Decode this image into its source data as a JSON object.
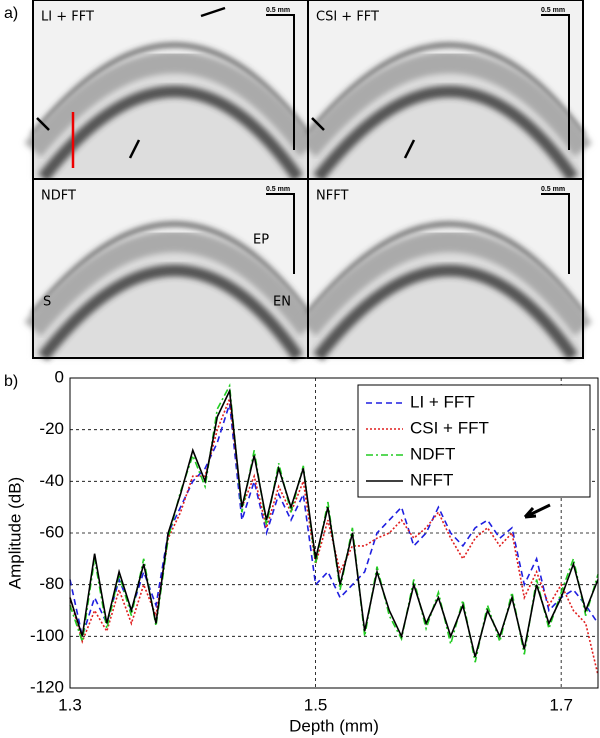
{
  "figure": {
    "panel_label": "a)",
    "images": [
      {
        "title": "LI + FFT",
        "scale": "0.5 mm"
      },
      {
        "title": "CSI + FFT",
        "scale": "0.5 mm"
      },
      {
        "title": "NDFT",
        "scale": "0.5 mm"
      },
      {
        "title": "NFFT",
        "scale": "0.5 mm"
      }
    ],
    "annotations": [
      "EP",
      "S",
      "EN"
    ]
  },
  "chart_data": {
    "type": "line",
    "panel_label": "b)",
    "x_label": "Depth (mm)",
    "y_label": "Amplitude (dB)",
    "xlim": [
      1.3,
      1.73
    ],
    "ylim": [
      -120,
      0
    ],
    "xticks": [
      1.3,
      1.5,
      1.7
    ],
    "yticks": [
      -120,
      -100,
      -80,
      -60,
      -40,
      -20,
      0
    ],
    "grid": true,
    "legend": "top-right",
    "x": [
      1.3,
      1.31,
      1.32,
      1.33,
      1.34,
      1.35,
      1.36,
      1.37,
      1.38,
      1.39,
      1.4,
      1.41,
      1.42,
      1.43,
      1.44,
      1.45,
      1.46,
      1.47,
      1.48,
      1.49,
      1.5,
      1.51,
      1.52,
      1.53,
      1.54,
      1.55,
      1.56,
      1.57,
      1.58,
      1.59,
      1.6,
      1.61,
      1.62,
      1.63,
      1.64,
      1.65,
      1.66,
      1.67,
      1.68,
      1.69,
      1.7,
      1.71,
      1.72,
      1.73
    ],
    "series": [
      {
        "name": "LI + FFT",
        "color": "#1f1fe0",
        "dash": "dashed",
        "values": [
          -78,
          -100,
          -85,
          -95,
          -78,
          -90,
          -75,
          -88,
          -60,
          -50,
          -40,
          -35,
          -25,
          -10,
          -55,
          -40,
          -60,
          -45,
          -55,
          -45,
          -80,
          -75,
          -85,
          -80,
          -75,
          -60,
          -55,
          -50,
          -65,
          -60,
          -50,
          -60,
          -65,
          -58,
          -55,
          -62,
          -58,
          -80,
          -70,
          -90,
          -85,
          -82,
          -88,
          -95
        ]
      },
      {
        "name": "CSI + FFT",
        "color": "#e01f1f",
        "dash": "dotted",
        "values": [
          -85,
          -102,
          -90,
          -98,
          -82,
          -95,
          -80,
          -92,
          -62,
          -52,
          -38,
          -38,
          -20,
          -8,
          -50,
          -38,
          -58,
          -42,
          -52,
          -40,
          -72,
          -55,
          -75,
          -65,
          -65,
          -62,
          -60,
          -55,
          -62,
          -58,
          -52,
          -62,
          -70,
          -62,
          -58,
          -65,
          -60,
          -85,
          -75,
          -88,
          -80,
          -90,
          -95,
          -115
        ]
      },
      {
        "name": "NDFT",
        "color": "#22cc22",
        "dash": "dashdot",
        "values": [
          -88,
          -102,
          -70,
          -97,
          -76,
          -92,
          -70,
          -96,
          -62,
          -44,
          -30,
          -42,
          -12,
          -3,
          -52,
          -28,
          -57,
          -33,
          -52,
          -34,
          -72,
          -48,
          -82,
          -58,
          -100,
          -73,
          -92,
          -101,
          -78,
          -97,
          -83,
          -103,
          -86,
          -110,
          -88,
          -102,
          -83,
          -107,
          -78,
          -97,
          -83,
          -70,
          -92,
          -76
        ]
      },
      {
        "name": "NFFT",
        "color": "#000000",
        "dash": "solid",
        "values": [
          -85,
          -100,
          -68,
          -95,
          -75,
          -90,
          -72,
          -95,
          -60,
          -45,
          -28,
          -40,
          -15,
          -5,
          -50,
          -30,
          -55,
          -35,
          -50,
          -35,
          -70,
          -50,
          -80,
          -60,
          -98,
          -75,
          -90,
          -100,
          -80,
          -95,
          -85,
          -100,
          -88,
          -108,
          -90,
          -100,
          -85,
          -105,
          -80,
          -95,
          -85,
          -72,
          -90,
          -78
        ]
      }
    ]
  }
}
